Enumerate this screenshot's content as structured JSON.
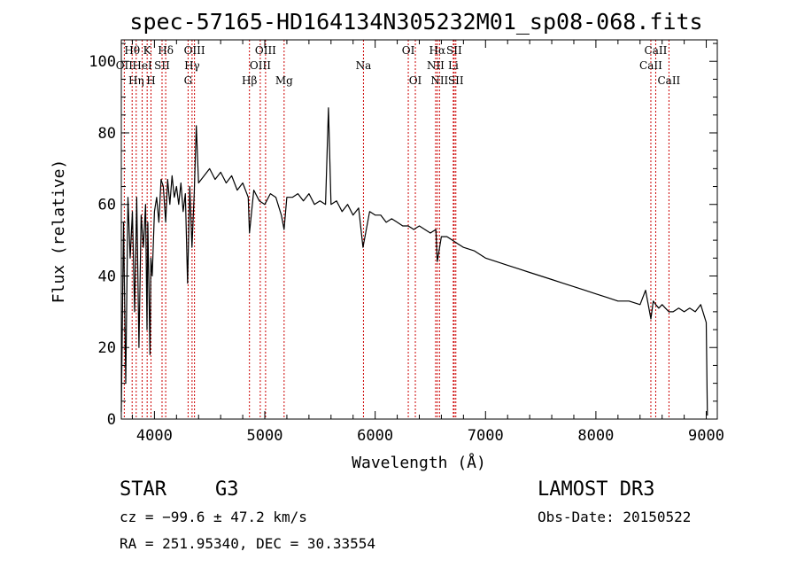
{
  "chart_data": {
    "type": "line",
    "title": "spec-57165-HD164134N305232M01_sp08-068.fits",
    "xlabel": "Wavelength (Å)",
    "ylabel": "Flux (relative)",
    "xlim": [
      3700,
      9100
    ],
    "ylim": [
      0,
      106
    ],
    "x_ticks": [
      4000,
      5000,
      6000,
      7000,
      8000,
      9000
    ],
    "y_ticks": [
      0,
      20,
      40,
      60,
      80,
      100
    ],
    "grid": false,
    "series": [
      {
        "name": "spectrum",
        "color": "#000000",
        "x": [
          3700,
          3720,
          3740,
          3760,
          3780,
          3800,
          3820,
          3840,
          3860,
          3880,
          3900,
          3920,
          3933,
          3940,
          3960,
          3968,
          3980,
          4000,
          4020,
          4040,
          4060,
          4080,
          4102,
          4120,
          4140,
          4160,
          4180,
          4200,
          4220,
          4240,
          4260,
          4280,
          4300,
          4320,
          4340,
          4360,
          4380,
          4400,
          4450,
          4500,
          4550,
          4600,
          4650,
          4700,
          4750,
          4800,
          4850,
          4861,
          4900,
          4950,
          5000,
          5050,
          5100,
          5150,
          5175,
          5200,
          5250,
          5300,
          5350,
          5400,
          5450,
          5500,
          5550,
          5577,
          5600,
          5650,
          5700,
          5750,
          5800,
          5850,
          5890,
          5950,
          6000,
          6050,
          6100,
          6150,
          6200,
          6250,
          6300,
          6350,
          6400,
          6450,
          6500,
          6550,
          6563,
          6600,
          6650,
          6700,
          6750,
          6800,
          6900,
          7000,
          7100,
          7200,
          7300,
          7400,
          7500,
          7600,
          7700,
          7800,
          7900,
          8000,
          8100,
          8200,
          8300,
          8400,
          8450,
          8498,
          8520,
          8542,
          8570,
          8600,
          8630,
          8662,
          8700,
          8750,
          8800,
          8850,
          8900,
          8950,
          8980,
          9000,
          9010
        ],
        "y": [
          2,
          55,
          10,
          62,
          45,
          58,
          30,
          62,
          20,
          57,
          48,
          60,
          25,
          55,
          18,
          45,
          40,
          58,
          62,
          55,
          67,
          65,
          55,
          67,
          60,
          68,
          62,
          65,
          60,
          66,
          58,
          63,
          38,
          65,
          48,
          63,
          82,
          66,
          68,
          70,
          67,
          69,
          66,
          68,
          64,
          66,
          62,
          52,
          64,
          61,
          60,
          63,
          62,
          57,
          53,
          62,
          62,
          63,
          61,
          63,
          60,
          61,
          60,
          87,
          60,
          61,
          58,
          60,
          57,
          59,
          48,
          58,
          57,
          57,
          55,
          56,
          55,
          54,
          54,
          53,
          54,
          53,
          52,
          53,
          44,
          51,
          51,
          50,
          49,
          48,
          47,
          45,
          44,
          43,
          42,
          41,
          40,
          39,
          38,
          37,
          36,
          35,
          34,
          33,
          33,
          32,
          36,
          28,
          33,
          32,
          31,
          32,
          31,
          30,
          30,
          31,
          30,
          31,
          30,
          32,
          29,
          27,
          1
        ]
      }
    ],
    "spectral_lines": [
      {
        "label": "Hθ",
        "wavelength": 3798,
        "row": 1
      },
      {
        "label": "OII",
        "wavelength": 3727,
        "row": 2
      },
      {
        "label": "Hη",
        "wavelength": 3835,
        "row": 3
      },
      {
        "label": "K",
        "wavelength": 3934,
        "row": 1
      },
      {
        "label": "HeI",
        "wavelength": 3889,
        "row": 2
      },
      {
        "label": "H",
        "wavelength": 3969,
        "row": 3
      },
      {
        "label": "Hδ",
        "wavelength": 4102,
        "row": 1
      },
      {
        "label": "SII",
        "wavelength": 4069,
        "row": 2
      },
      {
        "label": "OIII",
        "wavelength": 4363,
        "row": 1
      },
      {
        "label": "Hγ",
        "wavelength": 4341,
        "row": 2
      },
      {
        "label": "G",
        "wavelength": 4305,
        "row": 3
      },
      {
        "label": "OIII",
        "wavelength": 5007,
        "row": 1
      },
      {
        "label": "OIII",
        "wavelength": 4959,
        "row": 2
      },
      {
        "label": "Hβ",
        "wavelength": 4861,
        "row": 3
      },
      {
        "label": "Mg",
        "wavelength": 5175,
        "row": 3
      },
      {
        "label": "Na",
        "wavelength": 5894,
        "row": 2
      },
      {
        "label": "OI",
        "wavelength": 6300,
        "row": 1
      },
      {
        "label": "OI",
        "wavelength": 6364,
        "row": 3
      },
      {
        "label": "Hα",
        "wavelength": 6563,
        "row": 1
      },
      {
        "label": "SII",
        "wavelength": 6716,
        "row": 1
      },
      {
        "label": "NII",
        "wavelength": 6548,
        "row": 2
      },
      {
        "label": "Li",
        "wavelength": 6708,
        "row": 2
      },
      {
        "label": "NII",
        "wavelength": 6583,
        "row": 3
      },
      {
        "label": "SII",
        "wavelength": 6731,
        "row": 3
      },
      {
        "label": "CaII",
        "wavelength": 8542,
        "row": 1
      },
      {
        "label": "CaII",
        "wavelength": 8498,
        "row": 2
      },
      {
        "label": "CaII",
        "wavelength": 8662,
        "row": 3
      }
    ],
    "line_marker_color": "#cc0000"
  },
  "info": {
    "object_class": "STAR",
    "subclass": "G3",
    "survey": "LAMOST DR3",
    "cz": "cz = −99.6 ± 47.2 km/s",
    "obs_date": "Obs-Date: 20150522",
    "coords": "RA = 251.95340, DEC =  30.33554"
  }
}
